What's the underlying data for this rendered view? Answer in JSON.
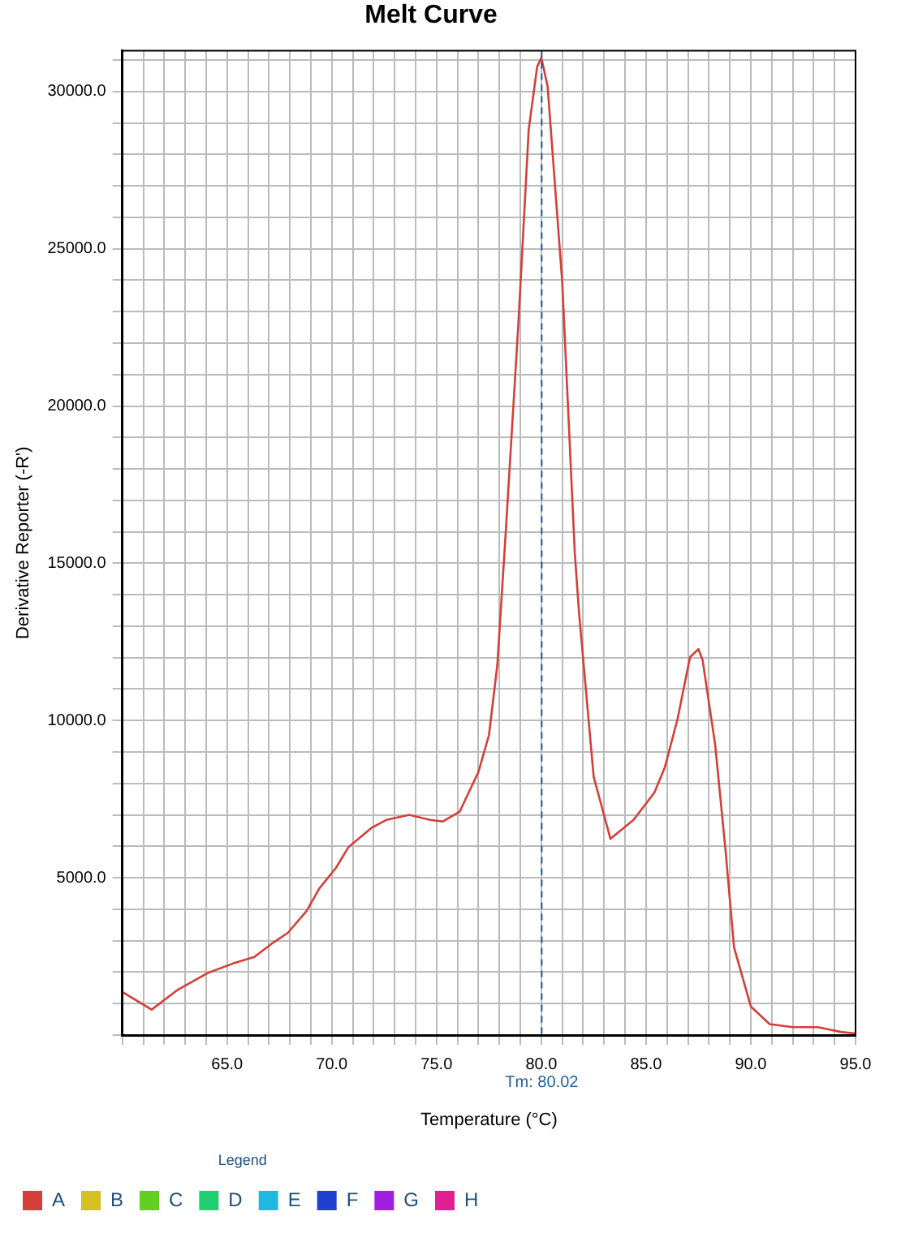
{
  "chart_data": {
    "type": "line",
    "title": "Melt Curve",
    "xlabel": "Temperature (°C)",
    "ylabel": "Derivative Reporter (-R')",
    "legend_title": "Legend",
    "legend": "bottom",
    "grid": true,
    "marker": "none",
    "line_style": "solid",
    "x": [
      60.0,
      61.4,
      62.6,
      64.1,
      65.3,
      66.3,
      67.1,
      67.9,
      68.8,
      69.4,
      70.2,
      70.8,
      71.9,
      72.6,
      73.7,
      74.7,
      75.3,
      76.1,
      77.0,
      77.5,
      77.9,
      78.3,
      78.9,
      79.4,
      79.8,
      80.0,
      80.3,
      81.0,
      81.6,
      81.8,
      82.5,
      83.3,
      84.4,
      85.4,
      85.9,
      86.5,
      87.1,
      87.5,
      87.7,
      88.3,
      88.8,
      89.2,
      90.0,
      90.9,
      92.0,
      93.2,
      94.3,
      95.0
    ],
    "series": [
      {
        "name": "A",
        "color": "#d43f3a",
        "values": [
          1370,
          810,
          1420,
          1980,
          2280,
          2480,
          2890,
          3250,
          3950,
          4660,
          5320,
          5980,
          6590,
          6840,
          7000,
          6840,
          6790,
          7100,
          8370,
          9530,
          11760,
          15970,
          22560,
          28800,
          30780,
          31080,
          30170,
          23930,
          15310,
          13440,
          8210,
          6240,
          6840,
          7710,
          8520,
          10040,
          12020,
          12270,
          11920,
          9230,
          5830,
          2790,
          910,
          350,
          250,
          250,
          100,
          50
        ]
      },
      {
        "name": "B",
        "color": "#d4c020",
        "values": [
          null,
          null,
          null,
          null,
          null,
          null,
          null,
          null,
          null,
          null,
          null,
          null,
          null,
          null,
          null,
          null,
          null,
          null,
          null,
          null,
          null,
          null,
          null,
          null,
          null,
          null,
          null,
          null,
          null,
          null,
          null,
          null,
          null,
          null,
          null,
          null,
          null,
          null,
          null,
          null,
          null,
          null,
          null,
          null,
          null,
          null,
          null,
          null
        ]
      },
      {
        "name": "C",
        "color": "#60d020",
        "values": [
          null,
          null,
          null,
          null,
          null,
          null,
          null,
          null,
          null,
          null,
          null,
          null,
          null,
          null,
          null,
          null,
          null,
          null,
          null,
          null,
          null,
          null,
          null,
          null,
          null,
          null,
          null,
          null,
          null,
          null,
          null,
          null,
          null,
          null,
          null,
          null,
          null,
          null,
          null,
          null,
          null,
          null,
          null,
          null,
          null,
          null,
          null,
          null
        ]
      },
      {
        "name": "D",
        "color": "#20d070",
        "values": [
          null,
          null,
          null,
          null,
          null,
          null,
          null,
          null,
          null,
          null,
          null,
          null,
          null,
          null,
          null,
          null,
          null,
          null,
          null,
          null,
          null,
          null,
          null,
          null,
          null,
          null,
          null,
          null,
          null,
          null,
          null,
          null,
          null,
          null,
          null,
          null,
          null,
          null,
          null,
          null,
          null,
          null,
          null,
          null,
          null,
          null,
          null,
          null
        ]
      },
      {
        "name": "E",
        "color": "#20b8e0",
        "values": [
          null,
          null,
          null,
          null,
          null,
          null,
          null,
          null,
          null,
          null,
          null,
          null,
          null,
          null,
          null,
          null,
          null,
          null,
          null,
          null,
          null,
          null,
          null,
          null,
          null,
          null,
          null,
          null,
          null,
          null,
          null,
          null,
          null,
          null,
          null,
          null,
          null,
          null,
          null,
          null,
          null,
          null,
          null,
          null,
          null,
          null,
          null,
          null
        ]
      },
      {
        "name": "F",
        "color": "#2040d0",
        "values": [
          null,
          null,
          null,
          null,
          null,
          null,
          null,
          null,
          null,
          null,
          null,
          null,
          null,
          null,
          null,
          null,
          null,
          null,
          null,
          null,
          null,
          null,
          null,
          null,
          null,
          null,
          null,
          null,
          null,
          null,
          null,
          null,
          null,
          null,
          null,
          null,
          null,
          null,
          null,
          null,
          null,
          null,
          null,
          null,
          null,
          null,
          null,
          null
        ]
      },
      {
        "name": "G",
        "color": "#a020e0",
        "values": [
          null,
          null,
          null,
          null,
          null,
          null,
          null,
          null,
          null,
          null,
          null,
          null,
          null,
          null,
          null,
          null,
          null,
          null,
          null,
          null,
          null,
          null,
          null,
          null,
          null,
          null,
          null,
          null,
          null,
          null,
          null,
          null,
          null,
          null,
          null,
          null,
          null,
          null,
          null,
          null,
          null,
          null,
          null,
          null,
          null,
          null,
          null,
          null
        ]
      },
      {
        "name": "H",
        "color": "#e02090",
        "values": [
          null,
          null,
          null,
          null,
          null,
          null,
          null,
          null,
          null,
          null,
          null,
          null,
          null,
          null,
          null,
          null,
          null,
          null,
          null,
          null,
          null,
          null,
          null,
          null,
          null,
          null,
          null,
          null,
          null,
          null,
          null,
          null,
          null,
          null,
          null,
          null,
          null,
          null,
          null,
          null,
          null,
          null,
          null,
          null,
          null,
          null,
          null,
          null
        ]
      }
    ],
    "xlim": [
      60,
      95
    ],
    "xticks": [
      {
        "value": 60,
        "label": null
      },
      {
        "value": 61,
        "label": null
      },
      {
        "value": 62,
        "label": null
      },
      {
        "value": 63,
        "label": null
      },
      {
        "value": 64,
        "label": null
      },
      {
        "value": 65,
        "label": "65.0"
      },
      {
        "value": 66,
        "label": null
      },
      {
        "value": 67,
        "label": null
      },
      {
        "value": 68,
        "label": null
      },
      {
        "value": 69,
        "label": null
      },
      {
        "value": 70,
        "label": "70.0"
      },
      {
        "value": 71,
        "label": null
      },
      {
        "value": 72,
        "label": null
      },
      {
        "value": 73,
        "label": null
      },
      {
        "value": 74,
        "label": null
      },
      {
        "value": 75,
        "label": "75.0"
      },
      {
        "value": 76,
        "label": null
      },
      {
        "value": 77,
        "label": null
      },
      {
        "value": 78,
        "label": null
      },
      {
        "value": 79,
        "label": null
      },
      {
        "value": 80,
        "label": "80.0"
      },
      {
        "value": 81,
        "label": null
      },
      {
        "value": 82,
        "label": null
      },
      {
        "value": 83,
        "label": null
      },
      {
        "value": 84,
        "label": null
      },
      {
        "value": 85,
        "label": "85.0"
      },
      {
        "value": 86,
        "label": null
      },
      {
        "value": 87,
        "label": null
      },
      {
        "value": 88,
        "label": null
      },
      {
        "value": 89,
        "label": null
      },
      {
        "value": 90,
        "label": "90.0"
      },
      {
        "value": 91,
        "label": null
      },
      {
        "value": 92,
        "label": null
      },
      {
        "value": 93,
        "label": null
      },
      {
        "value": 94,
        "label": null
      },
      {
        "value": 95,
        "label": "95.0"
      }
    ],
    "ylim": [
      0,
      31300
    ],
    "yticks": [
      {
        "value": 0,
        "label": null
      },
      {
        "value": 1000,
        "label": null
      },
      {
        "value": 2000,
        "label": null
      },
      {
        "value": 3000,
        "label": null
      },
      {
        "value": 4000,
        "label": null
      },
      {
        "value": 5000,
        "label": "5000.0"
      },
      {
        "value": 6000,
        "label": null
      },
      {
        "value": 7000,
        "label": null
      },
      {
        "value": 8000,
        "label": null
      },
      {
        "value": 9000,
        "label": null
      },
      {
        "value": 10000,
        "label": "10000.0"
      },
      {
        "value": 11000,
        "label": null
      },
      {
        "value": 12000,
        "label": null
      },
      {
        "value": 13000,
        "label": null
      },
      {
        "value": 14000,
        "label": null
      },
      {
        "value": 15000,
        "label": "15000.0"
      },
      {
        "value": 16000,
        "label": null
      },
      {
        "value": 17000,
        "label": null
      },
      {
        "value": 18000,
        "label": null
      },
      {
        "value": 19000,
        "label": null
      },
      {
        "value": 20000,
        "label": "20000.0"
      },
      {
        "value": 21000,
        "label": null
      },
      {
        "value": 22000,
        "label": null
      },
      {
        "value": 23000,
        "label": null
      },
      {
        "value": 24000,
        "label": null
      },
      {
        "value": 25000,
        "label": "25000.0"
      },
      {
        "value": 26000,
        "label": null
      },
      {
        "value": 27000,
        "label": null
      },
      {
        "value": 28000,
        "label": null
      },
      {
        "value": 29000,
        "label": null
      },
      {
        "value": 30000,
        "label": "30000.0"
      },
      {
        "value": 31000,
        "label": null
      }
    ],
    "ref_lines": [
      {
        "axis": "x",
        "value": 80.02,
        "label": "Tm: 80.02",
        "color": "#1f5f9f",
        "line_style": "dashed"
      }
    ]
  }
}
